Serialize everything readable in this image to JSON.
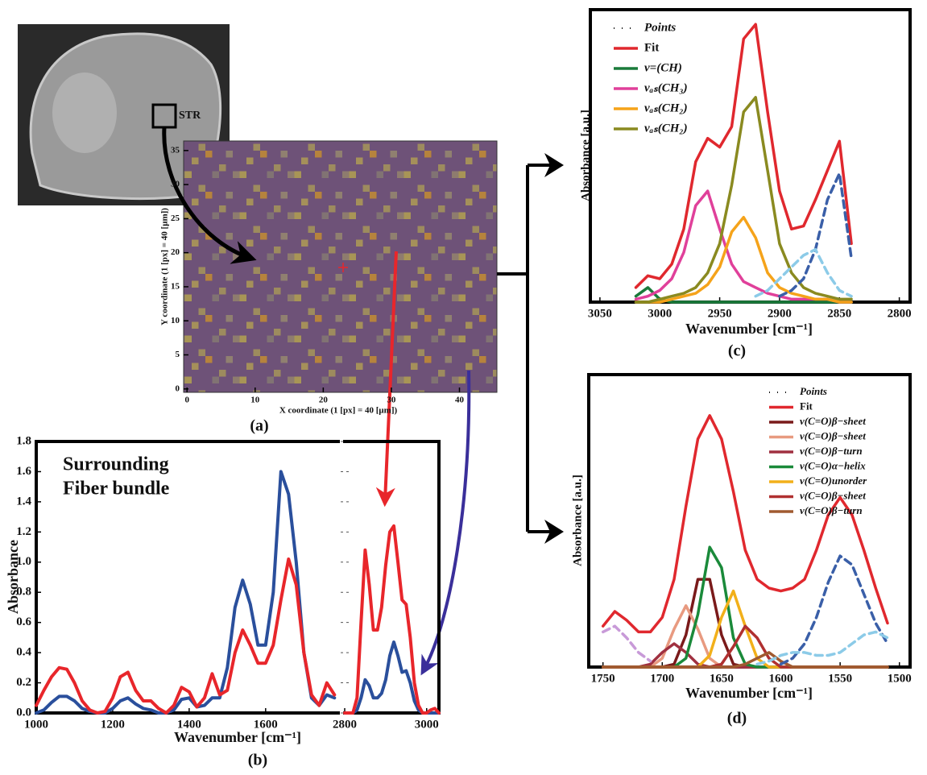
{
  "chart_data": [
    {
      "type": "heatmap",
      "label": "(a)",
      "annotation": "STR",
      "xlabel": "X coordinate (1 [px] = 40 [μm])",
      "ylabel": "Y coordinate (1 [px] = 40 [μm])",
      "xlim": [
        -0.5,
        45.5
      ],
      "ylim": [
        -0.5,
        36.4
      ],
      "xticks": [
        0,
        10,
        20,
        30,
        40
      ],
      "yticks": [
        0,
        5,
        10,
        15,
        20,
        25,
        30,
        35
      ]
    },
    {
      "type": "line",
      "label": "(b)",
      "xlabel": "Wavenumber [cm⁻¹]",
      "ylabel": "Absorbance",
      "xlim": [
        1000,
        1790
      ],
      "ylim": [
        0,
        1.8
      ],
      "xticks": [
        1000,
        1200,
        1400,
        1600
      ],
      "yticks": [
        {
          "value": 0,
          "label": "0.0"
        },
        0.2,
        0.4,
        0.6,
        0.8,
        {
          "value": 1,
          "label": "1.0"
        },
        1.2,
        1.4,
        1.6,
        1.8
      ],
      "x": [
        1000,
        1020,
        1040,
        1060,
        1080,
        1100,
        1120,
        1140,
        1160,
        1180,
        1200,
        1220,
        1240,
        1260,
        1280,
        1300,
        1320,
        1340,
        1360,
        1380,
        1400,
        1420,
        1440,
        1460,
        1480,
        1500,
        1520,
        1540,
        1560,
        1580,
        1600,
        1620,
        1640,
        1660,
        1680,
        1700,
        1720,
        1740,
        1760,
        1780
      ],
      "series": [
        {
          "name": "Surrounding",
          "color": "#2a4f9c",
          "values": [
            0,
            0.02,
            0.07,
            0.11,
            0.11,
            0.08,
            0.03,
            0.01,
            0,
            0,
            0.03,
            0.08,
            0.1,
            0.06,
            0.03,
            0.02,
            0,
            0,
            0.02,
            0.09,
            0.1,
            0.04,
            0.05,
            0.1,
            0.1,
            0.3,
            0.7,
            0.88,
            0.72,
            0.45,
            0.45,
            0.8,
            1.6,
            1.45,
            1.0,
            0.4,
            0.1,
            0.05,
            0.12,
            0.1
          ]
        },
        {
          "name": "Fiber bundle",
          "color": "#e8262b",
          "values": [
            0.05,
            0.15,
            0.24,
            0.3,
            0.29,
            0.2,
            0.08,
            0.02,
            0,
            0.01,
            0.1,
            0.24,
            0.27,
            0.15,
            0.08,
            0.08,
            0.03,
            0,
            0.05,
            0.17,
            0.14,
            0.04,
            0.1,
            0.26,
            0.12,
            0.15,
            0.4,
            0.55,
            0.45,
            0.33,
            0.33,
            0.45,
            0.75,
            1.02,
            0.85,
            0.4,
            0.12,
            0.05,
            0.2,
            0.12
          ]
        }
      ]
    },
    {
      "type": "line",
      "xlim": [
        2800,
        3030
      ],
      "ylim": [
        0,
        1.8
      ],
      "xticks": [
        2800,
        3000
      ],
      "x": [
        2800,
        2810,
        2820,
        2830,
        2840,
        2850,
        2860,
        2870,
        2880,
        2890,
        2900,
        2910,
        2920,
        2930,
        2940,
        2950,
        2960,
        2970,
        2980,
        2990,
        3000,
        3010,
        3020,
        3030
      ],
      "series": [
        {
          "color": "#2a4f9c",
          "values": [
            0,
            0,
            0,
            0.02,
            0.1,
            0.22,
            0.18,
            0.1,
            0.1,
            0.13,
            0.22,
            0.38,
            0.47,
            0.38,
            0.27,
            0.28,
            0.2,
            0.08,
            0.02,
            0,
            0,
            0,
            0,
            0
          ]
        },
        {
          "color": "#e8262b",
          "values": [
            0,
            0,
            0,
            0.1,
            0.6,
            1.08,
            0.85,
            0.55,
            0.55,
            0.7,
            0.98,
            1.2,
            1.24,
            1.0,
            0.75,
            0.72,
            0.5,
            0.2,
            0.05,
            0,
            0,
            0.02,
            0.03,
            0
          ]
        }
      ]
    },
    {
      "type": "line",
      "label": "(c)",
      "xlabel": "Wavenumber [cm⁻¹]",
      "ylabel": "Absorbance [a.u.]",
      "xlim": [
        3058,
        2791
      ],
      "ylim": [
        0,
        1
      ],
      "xticks": [
        3050,
        3000,
        2950,
        2900,
        2850,
        2800
      ],
      "x": [
        3020,
        3010,
        3000,
        2990,
        2980,
        2970,
        2960,
        2950,
        2940,
        2930,
        2920,
        2910,
        2900,
        2890,
        2880,
        2870,
        2860,
        2850,
        2840
      ],
      "series": [
        {
          "name": "Points",
          "color": "#111111",
          "style": "dotted",
          "values": [
            0.05,
            0.09,
            0.08,
            0.13,
            0.25,
            0.48,
            0.56,
            0.53,
            0.6,
            0.9,
            0.95,
            0.65,
            0.38,
            0.25,
            0.26,
            0.35,
            0.45,
            0.55,
            0.2
          ]
        },
        {
          "name": "Fit",
          "color": "#e0282e",
          "values": [
            0.05,
            0.09,
            0.08,
            0.13,
            0.25,
            0.48,
            0.56,
            0.53,
            0.6,
            0.9,
            0.95,
            0.65,
            0.38,
            0.25,
            0.26,
            0.35,
            0.45,
            0.55,
            0.2
          ]
        },
        {
          "name": "ν=(CH)",
          "color": "#1a7a3a",
          "values": [
            0.02,
            0.05,
            0.01,
            0,
            0,
            0,
            0,
            0,
            0,
            0,
            0,
            0,
            0,
            0,
            0,
            0,
            0,
            0,
            0
          ]
        },
        {
          "name": "νₐₛ(CH₃)",
          "color": "#e0409a",
          "values": [
            0.01,
            0.02,
            0.04,
            0.08,
            0.17,
            0.33,
            0.38,
            0.25,
            0.13,
            0.07,
            0.05,
            0.03,
            0.02,
            0.01,
            0.01,
            0.01,
            0.01,
            0,
            0
          ]
        },
        {
          "name": "νₐₛ(CH₂)",
          "color": "#f5a31a",
          "values": [
            0,
            0,
            0,
            0.01,
            0.02,
            0.03,
            0.06,
            0.12,
            0.24,
            0.29,
            0.22,
            0.1,
            0.05,
            0.03,
            0.02,
            0.01,
            0.01,
            0,
            0
          ]
        },
        {
          "name": "νₐₛ(CH₂)",
          "color": "#8a8a20",
          "values": [
            0,
            0,
            0.01,
            0.02,
            0.03,
            0.05,
            0.1,
            0.2,
            0.4,
            0.65,
            0.7,
            0.45,
            0.2,
            0.1,
            0.05,
            0.03,
            0.02,
            0.01,
            0.01
          ]
        },
        {
          "color": "#3a5fa8",
          "style": "dashed",
          "values": [
            null,
            null,
            null,
            null,
            null,
            null,
            null,
            null,
            null,
            null,
            null,
            null,
            0.02,
            0.04,
            0.08,
            0.18,
            0.35,
            0.44,
            0.15
          ]
        },
        {
          "color": "#8ccbe8",
          "style": "dashed",
          "values": [
            null,
            null,
            null,
            null,
            null,
            null,
            null,
            null,
            null,
            null,
            0.02,
            0.04,
            0.08,
            0.12,
            0.16,
            0.18,
            0.1,
            0.04,
            0.02
          ]
        }
      ]
    },
    {
      "type": "line",
      "label": "(d)",
      "xlabel": "Wavenumber [cm⁻¹]",
      "ylabel": "Absorbance [a.u.]",
      "xlim": [
        1762,
        1491
      ],
      "ylim": [
        0,
        1
      ],
      "xticks": [
        1750,
        1700,
        1650,
        1600,
        1550,
        1500
      ],
      "x": [
        1750,
        1740,
        1730,
        1720,
        1710,
        1700,
        1690,
        1680,
        1670,
        1660,
        1650,
        1640,
        1630,
        1620,
        1610,
        1600,
        1590,
        1580,
        1570,
        1560,
        1550,
        1540,
        1530,
        1520,
        1510
      ],
      "series": [
        {
          "name": "Points",
          "color": "#111111",
          "style": "dotted",
          "values": [
            0.14,
            0.19,
            0.16,
            0.12,
            0.12,
            0.17,
            0.3,
            0.55,
            0.78,
            0.86,
            0.78,
            0.6,
            0.4,
            0.3,
            0.27,
            0.26,
            0.27,
            0.3,
            0.4,
            0.52,
            0.58,
            0.52,
            0.4,
            0.27,
            0.15
          ]
        },
        {
          "name": "Fit",
          "color": "#e0282e",
          "values": [
            0.14,
            0.19,
            0.16,
            0.12,
            0.12,
            0.17,
            0.3,
            0.55,
            0.78,
            0.86,
            0.78,
            0.6,
            0.4,
            0.3,
            0.27,
            0.26,
            0.27,
            0.3,
            0.4,
            0.52,
            0.58,
            0.52,
            0.4,
            0.27,
            0.15
          ]
        },
        {
          "name": "ν(C=O)β−sheet",
          "color": "#7a1a1a",
          "values": [
            0,
            0,
            0,
            0,
            0,
            0,
            0.01,
            0.11,
            0.3,
            0.3,
            0.11,
            0.01,
            0,
            0,
            0,
            0,
            0,
            0,
            0,
            0,
            0,
            0,
            0,
            0,
            0
          ]
        },
        {
          "name": "ν(C=O)β−sheet",
          "color": "#e89a80",
          "values": [
            0,
            0,
            0,
            0,
            0,
            0.03,
            0.13,
            0.21,
            0.13,
            0.03,
            0,
            0,
            0,
            0,
            0,
            0,
            0,
            0,
            0,
            0,
            0,
            0,
            0,
            0,
            0
          ]
        },
        {
          "name": "ν(C=O)β−turn",
          "color": "#a03040",
          "values": [
            0,
            0,
            0,
            0,
            0.01,
            0.05,
            0.08,
            0.05,
            0.01,
            0,
            0,
            0,
            0,
            0,
            0,
            0,
            0,
            0,
            0,
            0,
            0,
            0,
            0,
            0,
            0
          ]
        },
        {
          "name": "ν(C=O)α−helix",
          "color": "#1a8a3a",
          "values": [
            0,
            0,
            0,
            0,
            0,
            0,
            0,
            0.03,
            0.18,
            0.41,
            0.34,
            0.1,
            0.01,
            0,
            0,
            0,
            0,
            0,
            0,
            0,
            0,
            0,
            0,
            0,
            0
          ]
        },
        {
          "name": "ν(C=O)unorder",
          "color": "#f2b01a",
          "values": [
            0,
            0,
            0,
            0,
            0,
            0,
            0,
            0,
            0,
            0.04,
            0.17,
            0.26,
            0.14,
            0.03,
            0,
            0,
            0,
            0,
            0,
            0,
            0,
            0,
            0,
            0,
            0
          ]
        },
        {
          "name": "ν(C=O)β−sheet",
          "color": "#b03030",
          "values": [
            0,
            0,
            0,
            0,
            0,
            0,
            0,
            0,
            0,
            0,
            0.01,
            0.07,
            0.14,
            0.1,
            0.03,
            0,
            0,
            0,
            0,
            0,
            0,
            0,
            0,
            0,
            0
          ]
        },
        {
          "name": "ν(C=O)β−turn",
          "color": "#a05a30",
          "values": [
            0,
            0,
            0,
            0,
            0,
            0,
            0,
            0,
            0,
            0,
            0,
            0,
            0.01,
            0.03,
            0.05,
            0.02,
            0,
            0,
            0,
            0,
            0,
            0,
            0,
            0,
            0
          ]
        },
        {
          "color": "#c89ad8",
          "style": "dashed",
          "values": [
            0.12,
            0.14,
            0.1,
            0.05,
            0.02,
            null,
            null,
            null,
            null,
            null,
            null,
            null,
            null,
            null,
            null,
            null,
            null,
            null,
            null,
            null,
            null,
            null,
            null,
            null,
            null
          ]
        },
        {
          "color": "#3a5fa8",
          "style": "dashed",
          "values": [
            null,
            null,
            null,
            null,
            null,
            null,
            null,
            null,
            null,
            null,
            null,
            null,
            null,
            null,
            null,
            0.01,
            0.03,
            0.08,
            0.17,
            0.29,
            0.38,
            0.35,
            0.25,
            0.15,
            0.08
          ]
        },
        {
          "color": "#8ccbe8",
          "style": "dashed",
          "values": [
            null,
            null,
            null,
            null,
            null,
            null,
            null,
            null,
            null,
            null,
            null,
            null,
            null,
            0.01,
            0.02,
            0.04,
            0.05,
            0.05,
            0.04,
            0.04,
            0.05,
            0.08,
            0.11,
            0.12,
            0.1
          ]
        }
      ]
    }
  ]
}
